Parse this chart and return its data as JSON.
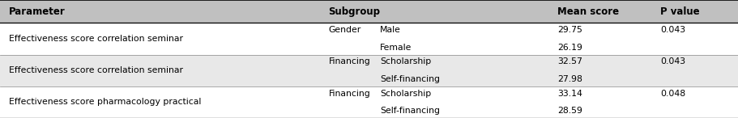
{
  "header": [
    "Parameter",
    "Subgroup",
    "Mean score",
    "P value"
  ],
  "rows": [
    {
      "parameter": "Effectiveness score correlation seminar",
      "subgroup_col1": "Gender",
      "subgroup_col2": [
        "Male",
        "Female"
      ],
      "mean_scores": [
        "29.75",
        "26.19"
      ],
      "p_value": "0.043",
      "bg": "#ffffff"
    },
    {
      "parameter": "Effectiveness score correlation seminar",
      "subgroup_col1": "Financing",
      "subgroup_col2": [
        "Scholarship",
        "Self-financing"
      ],
      "mean_scores": [
        "32.57",
        "27.98"
      ],
      "p_value": "0.043",
      "bg": "#e8e8e8"
    },
    {
      "parameter": "Effectiveness score pharmacology practical",
      "subgroup_col1": "Financing",
      "subgroup_col2": [
        "Scholarship",
        "Self-financing"
      ],
      "mean_scores": [
        "33.14",
        "28.59"
      ],
      "p_value": "0.048",
      "bg": "#ffffff"
    }
  ],
  "col_param": 0.012,
  "col_sub1": 0.445,
  "col_sub2": 0.515,
  "col_mean": 0.755,
  "col_pval": 0.895,
  "header_bg": "#c0c0c0",
  "header_text_color": "#000000",
  "body_text_color": "#000000",
  "fig_width": 9.11,
  "fig_height": 1.46,
  "font_size": 7.8,
  "header_font_size": 8.5
}
